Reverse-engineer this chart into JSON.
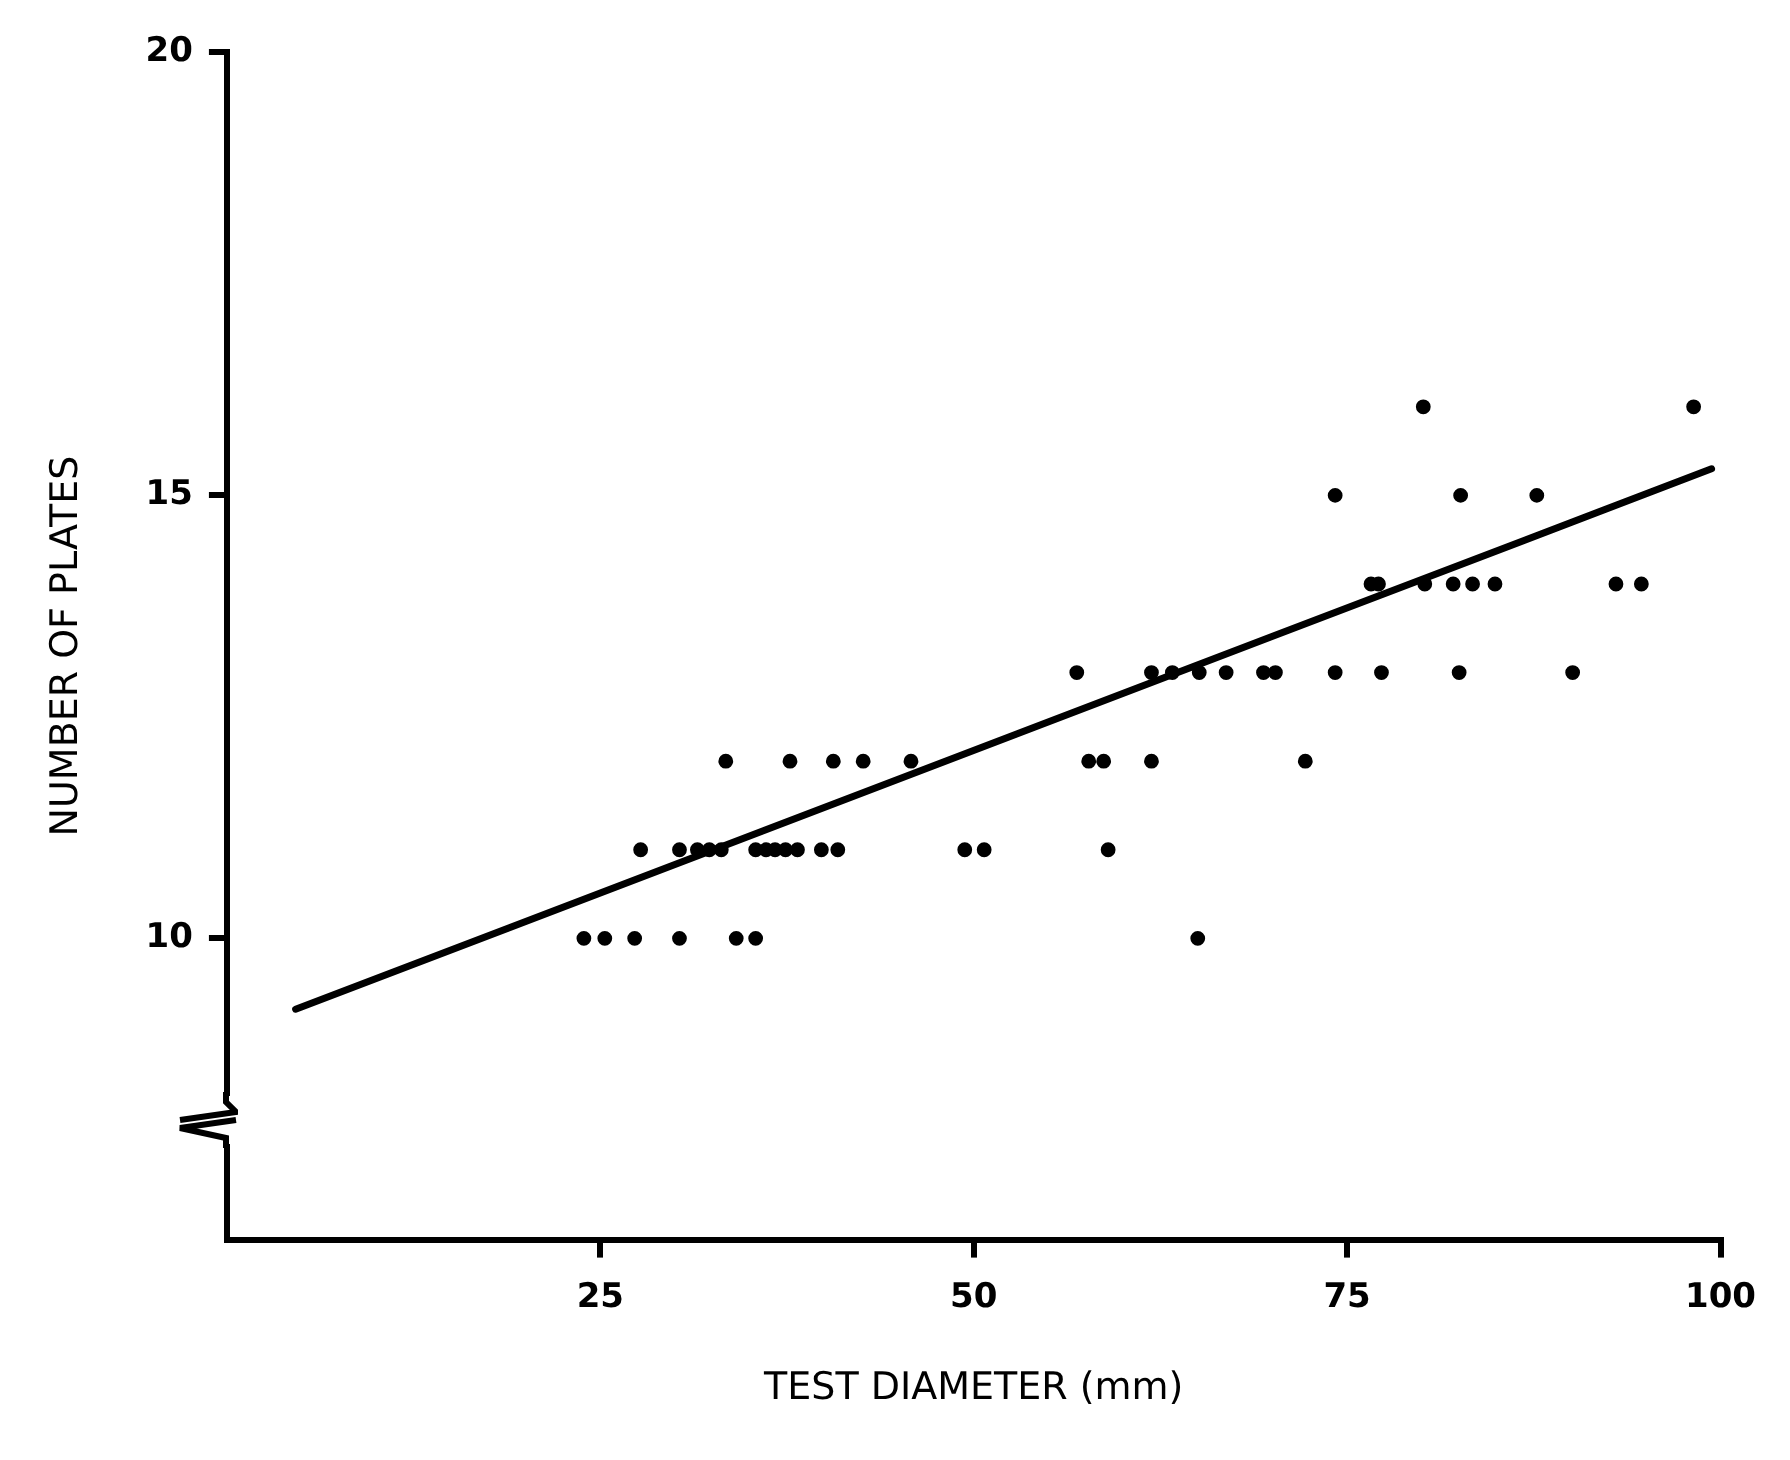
{
  "chart_data": {
    "type": "scatter",
    "xlabel": "TEST DIAMETER (mm)",
    "ylabel": "NUMBER OF PLATES",
    "xlim": [
      0,
      100
    ],
    "xticks": [
      25,
      50,
      75,
      100
    ],
    "ylim": [
      6.6,
      20
    ],
    "yticks": [
      10,
      15,
      20
    ],
    "grid": false,
    "legend": false,
    "series": [
      {
        "marker": "circle",
        "color": "#000000",
        "x": [
          23.9,
          25.3,
          27.3,
          30.3,
          34.1,
          35.4,
          65.0,
          27.7,
          30.3,
          31.5,
          32.3,
          33.1,
          35.4,
          36.1,
          36.7,
          37.4,
          38.2,
          39.8,
          40.9,
          49.4,
          50.7,
          59.0,
          33.4,
          37.7,
          40.6,
          42.6,
          45.8,
          57.7,
          58.7,
          61.9,
          72.2,
          56.9,
          61.9,
          63.3,
          65.1,
          66.9,
          69.4,
          70.2,
          74.2,
          77.3,
          82.5,
          90.1,
          76.6,
          77.1,
          80.2,
          82.1,
          83.4,
          84.9,
          93.0,
          94.7,
          74.2,
          82.6,
          87.7,
          80.1,
          98.2
        ],
        "values": [
          10,
          10,
          10,
          10,
          10,
          10,
          10,
          11,
          11,
          11,
          11,
          11,
          11,
          11,
          11,
          11,
          11,
          11,
          11,
          11,
          11,
          11,
          12,
          12,
          12,
          12,
          12,
          12,
          12,
          12,
          12,
          13,
          13,
          13,
          13,
          13,
          13,
          13,
          13,
          13,
          13,
          13,
          14,
          14,
          14,
          14,
          14,
          14,
          14,
          14,
          15,
          15,
          15,
          16,
          16
        ]
      },
      {
        "type": "line",
        "marker": "none",
        "color": "#000000",
        "x": [
          4.6,
          99.4
        ],
        "values": [
          9.2,
          15.3
        ]
      }
    ]
  }
}
